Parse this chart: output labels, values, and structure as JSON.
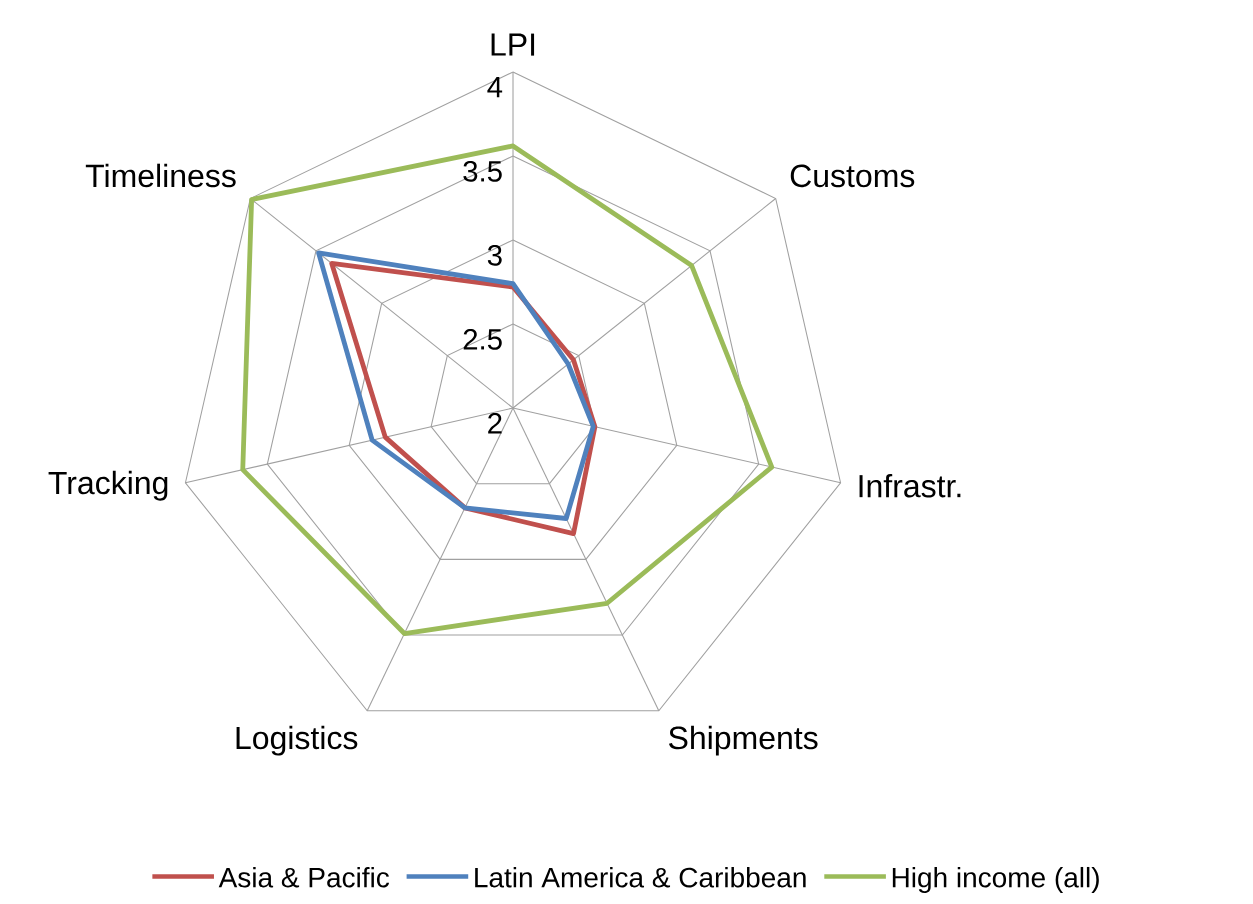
{
  "chart_data": {
    "type": "radar",
    "categories": [
      "LPI",
      "Customs",
      "Infrastr.",
      "Shipments",
      "Logistics",
      "Tracking",
      "Timeliness"
    ],
    "series": [
      {
        "name": "Asia & Pacific",
        "color": "#c0504d",
        "values": [
          2.72,
          2.46,
          2.5,
          2.83,
          2.66,
          2.78,
          3.38
        ]
      },
      {
        "name": "Latin America & Caribbean",
        "color": "#4f81bd",
        "values": [
          2.74,
          2.42,
          2.49,
          2.73,
          2.66,
          2.86,
          3.48
        ]
      },
      {
        "name": "High income (all)",
        "color": "#9bbb59",
        "values": [
          3.56,
          3.36,
          3.58,
          3.29,
          3.49,
          3.65,
          3.99
        ]
      }
    ],
    "ylim": [
      2,
      4
    ],
    "yticks": [
      2,
      2.5,
      3,
      3.5,
      4
    ],
    "grid": true,
    "legend": "bottom"
  }
}
